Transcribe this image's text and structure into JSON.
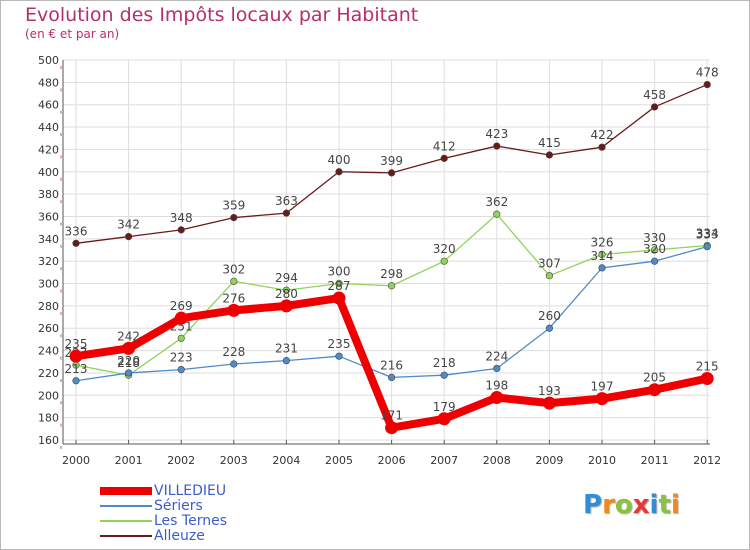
{
  "title": "Evolution des Impôts locaux par Habitant",
  "subtitle": "(en € et par an)",
  "logo": {
    "text": "Proxiti",
    "letters": [
      "P",
      "r",
      "o",
      "x",
      "i",
      "t",
      "i"
    ],
    "colors": [
      "#2d8fd6",
      "#f08a1c",
      "#8bc23f",
      "#e53935",
      "#2d8fd6",
      "#8bc23f",
      "#f08a1c"
    ]
  },
  "chart_data": {
    "type": "line",
    "categories": [
      "2000",
      "2001",
      "2002",
      "2003",
      "2004",
      "2005",
      "2006",
      "2007",
      "2008",
      "2009",
      "2010",
      "2011",
      "2012"
    ],
    "y_ticks": [
      160,
      180,
      200,
      220,
      240,
      260,
      280,
      300,
      320,
      340,
      360,
      380,
      400,
      420,
      440,
      460,
      480,
      500
    ],
    "ylim": [
      160,
      500
    ],
    "grid": true,
    "legend_position": "bottom-left",
    "series": [
      {
        "name": "Alleuze",
        "color": "#6b1a1a",
        "values": [
          336,
          342,
          348,
          359,
          363,
          400,
          399,
          412,
          423,
          415,
          422,
          458,
          478
        ]
      },
      {
        "name": "Les Ternes",
        "color": "#8ed45b",
        "values": [
          227,
          218,
          251,
          302,
          294,
          300,
          298,
          320,
          362,
          307,
          326,
          330,
          334
        ]
      },
      {
        "name": "Sériers",
        "color": "#4f8bc9",
        "values": [
          213,
          220,
          223,
          228,
          231,
          235,
          216,
          218,
          224,
          260,
          314,
          320,
          333
        ]
      },
      {
        "name": "VILLEDIEU",
        "color": "#ee0000",
        "values": [
          235,
          242,
          269,
          276,
          280,
          287,
          171,
          179,
          198,
          193,
          197,
          205,
          215
        ]
      }
    ],
    "legend_order": [
      "VILLEDIEU",
      "Sériers",
      "Les Ternes",
      "Alleuze"
    ]
  }
}
